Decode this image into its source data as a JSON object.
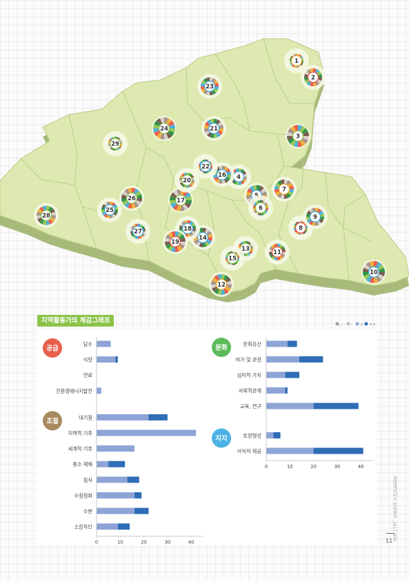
{
  "map": {
    "regions": [
      {
        "label": "1",
        "color": "#f1a62a"
      },
      {
        "label": "2",
        "color": "#e84e3c"
      },
      {
        "label": "3",
        "color": "#8bc34a"
      },
      {
        "label": "4",
        "color": "#3da7dc"
      },
      {
        "label": "5",
        "color": "#3da7dc"
      },
      {
        "label": "6",
        "color": "#8bc34a"
      },
      {
        "label": "7",
        "color": "#f1a62a"
      },
      {
        "label": "8",
        "color": "#e84e3c"
      },
      {
        "label": "9",
        "color": "#3da7dc"
      },
      {
        "label": "10",
        "color": "#3da7dc"
      },
      {
        "label": "11",
        "color": "#e84e3c"
      },
      {
        "label": "12",
        "color": "#f1a62a"
      },
      {
        "label": "13",
        "color": "#8bc34a"
      },
      {
        "label": "14",
        "color": "#3da7dc"
      },
      {
        "label": "15",
        "color": "#8bc34a"
      },
      {
        "label": "16",
        "color": "#3da7dc"
      },
      {
        "label": "17",
        "color": "#8bc34a"
      },
      {
        "label": "18",
        "color": "#3da7dc"
      },
      {
        "label": "19",
        "color": "#e84e3c"
      },
      {
        "label": "20",
        "color": "#8bc34a"
      },
      {
        "label": "21",
        "color": "#3da7dc"
      },
      {
        "label": "22",
        "color": "#3da7dc"
      },
      {
        "label": "23",
        "color": "#3da7dc"
      },
      {
        "label": "24",
        "color": "#8bc34a"
      },
      {
        "label": "25",
        "color": "#3da7dc"
      },
      {
        "label": "26",
        "color": "#8bc34a"
      },
      {
        "label": "27",
        "color": "#3da7dc"
      },
      {
        "label": "28",
        "color": "#8bc34a"
      },
      {
        "label": "29",
        "color": "#8bc34a"
      }
    ]
  },
  "chart_title": "지역활동가의 체감그래프",
  "legend": [
    "--",
    "-",
    "+",
    "++"
  ],
  "colors": {
    "light": "#8ea4d6",
    "dark": "#2f6db5",
    "green": "#8bc34a",
    "axis": "#999999"
  },
  "chart_data": [
    {
      "type": "bar",
      "stacked": true,
      "groups": [
        {
          "name": "공급",
          "badge_color": "#e8604c",
          "categories": [
            "담수",
            "식량",
            "연료",
            "친환경에너지발전"
          ]
        },
        {
          "name": "조절",
          "badge_color": "#a88a5e",
          "categories": [
            "대기질",
            "지역적 기후",
            "세계적 기후",
            "홍수 재해",
            "침식",
            "수질정화",
            "수분",
            "소음차단"
          ]
        }
      ],
      "categories": [
        "담수",
        "식량",
        "연료",
        "친환경에너지발전",
        "대기질",
        "지역적 기후",
        "세계적 기후",
        "홍수 재해",
        "침식",
        "수질정화",
        "수분",
        "소음차단"
      ],
      "series": [
        {
          "name": "+",
          "values": [
            6,
            8,
            0,
            2,
            22,
            42,
            16,
            5,
            13,
            16,
            16,
            9
          ]
        },
        {
          "name": "++",
          "values": [
            0,
            1,
            0,
            0,
            8,
            0,
            0,
            7,
            5,
            3,
            6,
            5
          ]
        }
      ],
      "xlim": [
        0,
        45
      ],
      "xticks": [
        0,
        10,
        20,
        30,
        40
      ]
    },
    {
      "type": "bar",
      "stacked": true,
      "groups": [
        {
          "name": "문화",
          "badge_color": "#5dba5a",
          "categories": [
            "문화유산",
            "여가 및 관광",
            "심미적 가치",
            "사회적관계",
            "교육, 연구"
          ]
        },
        {
          "name": "지지",
          "badge_color": "#4db2e3",
          "categories": [
            "토양형성",
            "서식처 제공"
          ]
        }
      ],
      "categories": [
        "문화유산",
        "여가 및 관광",
        "심미적 가치",
        "사회적관계",
        "교육, 연구",
        "토양형성",
        "서식처 제공"
      ],
      "series": [
        {
          "name": "+",
          "values": [
            9,
            14,
            8,
            8,
            20,
            3,
            20
          ]
        },
        {
          "name": "++",
          "values": [
            4,
            10,
            6,
            1,
            19,
            3,
            21
          ]
        }
      ],
      "xlim": [
        0,
        45
      ],
      "xticks": [
        0,
        10,
        20,
        30,
        40
      ]
    }
  ],
  "footer": {
    "side_text": "생태계서비스 안내평가_2017 원산",
    "page_number": "11"
  }
}
